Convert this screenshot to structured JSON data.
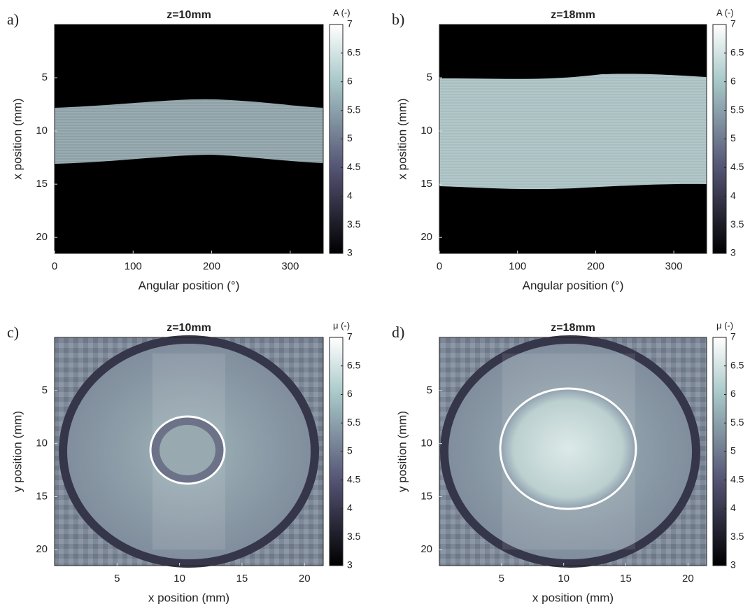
{
  "chart_data": [
    {
      "type": "heatmap",
      "panel_label": "a)",
      "title": "z=10mm",
      "xlabel": "Angular position (°)",
      "ylabel": "x position (mm)",
      "xlim": [
        0,
        342
      ],
      "xticks": [
        0,
        100,
        200,
        300
      ],
      "ylim": [
        21.5,
        0
      ],
      "yticks": [
        5,
        10,
        15,
        20
      ],
      "colormap": "bone",
      "colorbar": {
        "label": "A (-)",
        "lim": [
          3,
          7
        ],
        "ticks": [
          3,
          3.5,
          4,
          4.5,
          5,
          5.5,
          6,
          6.5,
          7
        ]
      }
    },
    {
      "type": "heatmap",
      "panel_label": "b)",
      "title": "z=18mm",
      "xlabel": "Angular position (°)",
      "ylabel": "x position (mm)",
      "xlim": [
        0,
        342
      ],
      "xticks": [
        0,
        100,
        200,
        300
      ],
      "ylim": [
        21.5,
        0
      ],
      "yticks": [
        5,
        10,
        15,
        20
      ],
      "colormap": "bone",
      "colorbar": {
        "label": "A (-)",
        "lim": [
          3,
          7
        ],
        "ticks": [
          3,
          3.5,
          4,
          4.5,
          5,
          5.5,
          6,
          6.5,
          7
        ]
      }
    },
    {
      "type": "heatmap",
      "panel_label": "c)",
      "title": "z=10mm",
      "xlabel": "x position (mm)",
      "ylabel": "y position (mm)",
      "xlim": [
        0,
        21.5
      ],
      "xticks": [
        5,
        10,
        15,
        20
      ],
      "ylim": [
        21.5,
        0
      ],
      "yticks": [
        5,
        10,
        15,
        20
      ],
      "colormap": "bone",
      "colorbar": {
        "label": "μ (-)",
        "lim": [
          3,
          7
        ],
        "ticks": [
          3,
          3.5,
          4,
          4.5,
          5,
          5.5,
          6,
          6.5,
          7
        ]
      }
    },
    {
      "type": "heatmap",
      "panel_label": "d)",
      "title": "z=18mm",
      "xlabel": "x position (mm)",
      "ylabel": "y position (mm)",
      "xlim": [
        0,
        21.5
      ],
      "xticks": [
        5,
        10,
        15,
        20
      ],
      "ylim": [
        21.5,
        0
      ],
      "yticks": [
        5,
        10,
        15,
        20
      ],
      "colormap": "bone",
      "colorbar": {
        "label": "μ (-)",
        "lim": [
          3,
          7
        ],
        "ticks": [
          3,
          3.5,
          4,
          4.5,
          5,
          5.5,
          6,
          6.5,
          7
        ]
      }
    }
  ]
}
